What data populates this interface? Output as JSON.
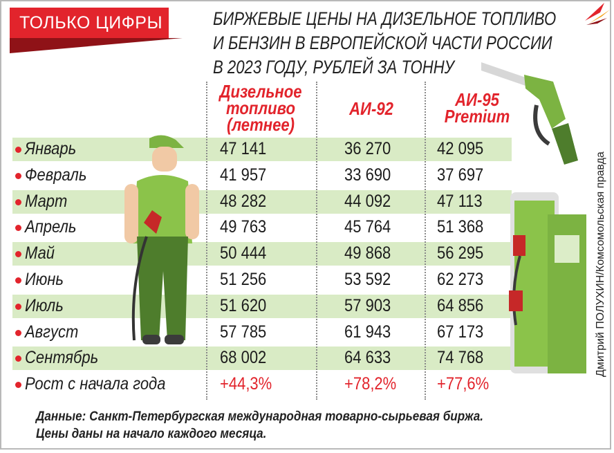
{
  "header": {
    "tag": "ТОЛЬКО ЦИФРЫ",
    "title_lines": [
      "БИРЖЕВЫЕ ЦЕНЫ НА ДИЗЕЛЬНОЕ ТОПЛИВО",
      "И БЕНЗИН В ЕВРОПЕЙСКОЙ ЧАСТИ РОССИИ",
      "В 2023 ГОДУ, РУБЛЕЙ ЗА ТОННУ"
    ]
  },
  "columns": {
    "diesel": [
      "Дизельное",
      "топливо",
      "(летнее)"
    ],
    "ai92": [
      "АИ-92"
    ],
    "ai95": [
      "АИ-95",
      "Premium"
    ]
  },
  "rows": [
    {
      "label": "Январь",
      "diesel": "47 141",
      "ai92": "36 270",
      "ai95": "42 095"
    },
    {
      "label": "Февраль",
      "diesel": "41 957",
      "ai92": "33 690",
      "ai95": "37 697"
    },
    {
      "label": "Март",
      "diesel": "48 282",
      "ai92": "44 092",
      "ai95": "47 113"
    },
    {
      "label": "Апрель",
      "diesel": "49 763",
      "ai92": "45 764",
      "ai95": "51 368"
    },
    {
      "label": "Май",
      "diesel": "50 444",
      "ai92": "49 868",
      "ai95": "56 295"
    },
    {
      "label": "Июнь",
      "diesel": "51 256",
      "ai92": "53 592",
      "ai95": "62 273"
    },
    {
      "label": "Июль",
      "diesel": "51 620",
      "ai92": "57 903",
      "ai95": "64 856"
    },
    {
      "label": "Август",
      "diesel": "57 785",
      "ai92": "61 943",
      "ai95": "67 173"
    },
    {
      "label": "Сентябрь",
      "diesel": "68 002",
      "ai92": "64 633",
      "ai95": "74 768"
    },
    {
      "label": "Рост с начала года",
      "diesel": "+44,3%",
      "ai92": "+78,2%",
      "ai95": "+77,6%"
    }
  ],
  "footnote_lines": [
    "Данные: Санкт-Петербургская международная товарно-сырьевая биржа.",
    "Цены даны на начало каждого месяца."
  ],
  "credit": "Дмитрий ПОЛУХИН/Комсомольская правда",
  "colors": {
    "accent": "#e2242c",
    "band": "#d9ebc5",
    "green": "#7cb342",
    "dark_green": "#4e7d2c"
  },
  "icons": [
    "gas-attendant-illustration",
    "fuel-nozzle-icon",
    "fuel-pump-icon",
    "kp-logo"
  ],
  "chart_data": {
    "type": "table",
    "title": "БИРЖЕВЫЕ ЦЕНЫ НА ДИЗЕЛЬНОЕ ТОПЛИВО И БЕНЗИН В ЕВРОПЕЙСКОЙ ЧАСТИ РОССИИ В 2023 ГОДУ, РУБЛЕЙ ЗА ТОННУ",
    "categories": [
      "Январь",
      "Февраль",
      "Март",
      "Апрель",
      "Май",
      "Июнь",
      "Июль",
      "Август",
      "Сентябрь"
    ],
    "series": [
      {
        "name": "Дизельное топливо (летнее)",
        "values": [
          47141,
          41957,
          48282,
          49763,
          50444,
          51256,
          51620,
          57785,
          68002
        ],
        "growth": "+44,3%"
      },
      {
        "name": "АИ-92",
        "values": [
          36270,
          33690,
          44092,
          45764,
          49868,
          53592,
          57903,
          61943,
          64633
        ],
        "growth": "+78,2%"
      },
      {
        "name": "АИ-95 Premium",
        "values": [
          42095,
          37697,
          47113,
          51368,
          56295,
          62273,
          64856,
          67173,
          74768
        ],
        "growth": "+77,6%"
      }
    ]
  }
}
